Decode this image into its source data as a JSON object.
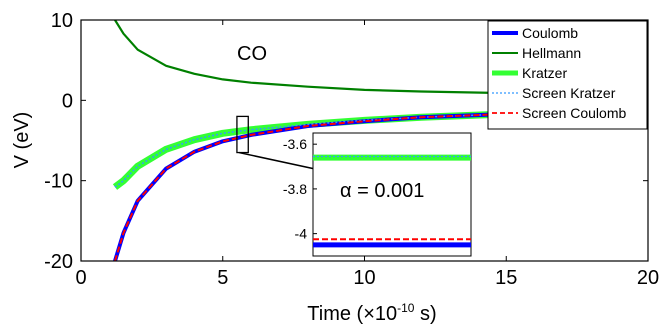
{
  "chart_data": {
    "type": "line",
    "xlabel_main": "Time (×10",
    "xlabel_exp": "-10",
    "xlabel_unit": " s)",
    "ylabel": "V (eV)",
    "xlim": [
      0,
      20
    ],
    "ylim": [
      -20,
      10
    ],
    "xticks": [
      "0",
      "5",
      "10",
      "15",
      "20"
    ],
    "yticks": [
      "10",
      "0",
      "-10",
      "-20"
    ],
    "annotation": "CO",
    "series": [
      {
        "name": "Coulomb",
        "color": "#0000ff",
        "x": [
          1.2,
          1.5,
          2,
          3,
          4,
          5,
          6,
          8,
          10,
          12,
          15,
          18,
          20
        ],
        "y": [
          -20,
          -16.5,
          -12.5,
          -8.5,
          -6.4,
          -5.1,
          -4.3,
          -3.2,
          -2.6,
          -2.1,
          -1.7,
          -1.4,
          -1.3
        ]
      },
      {
        "name": "Hellmann",
        "color": "#008000",
        "x": [
          1.2,
          1.5,
          2,
          3,
          4,
          5,
          6,
          8,
          10,
          12,
          15,
          18,
          20
        ],
        "y": [
          10,
          8.3,
          6.3,
          4.3,
          3.3,
          2.6,
          2.2,
          1.7,
          1.3,
          1.1,
          0.9,
          0.75,
          0.65
        ]
      },
      {
        "name": "Kratzer",
        "color": "#33ff33",
        "x": [
          1.2,
          1.5,
          2,
          3,
          4,
          5,
          6,
          8,
          10,
          12,
          15,
          18,
          20
        ],
        "y": [
          -10.8,
          -10.0,
          -8.2,
          -6.1,
          -4.9,
          -4.1,
          -3.65,
          -3.0,
          -2.5,
          -2.1,
          -1.7,
          -1.45,
          -1.3
        ]
      },
      {
        "name": "Screen Kratzer",
        "color": "#3399ff",
        "x": [
          1.2,
          1.5,
          2,
          3,
          4,
          5,
          6,
          8,
          10,
          12,
          15,
          18,
          20
        ],
        "y": [
          -10.8,
          -10.0,
          -8.2,
          -6.1,
          -4.9,
          -4.1,
          -3.65,
          -3.0,
          -2.5,
          -2.1,
          -1.7,
          -1.45,
          -1.3
        ]
      },
      {
        "name": "Screen Coulomb",
        "color": "#ff0000",
        "x": [
          1.2,
          1.5,
          2,
          3,
          4,
          5,
          6,
          8,
          10,
          12,
          15,
          18,
          20
        ],
        "y": [
          -20,
          -16.5,
          -12.5,
          -8.5,
          -6.4,
          -5.1,
          -4.3,
          -3.2,
          -2.6,
          -2.1,
          -1.7,
          -1.4,
          -1.3
        ]
      }
    ],
    "inset": {
      "yticks": [
        "-3.6",
        "-3.8",
        "-4"
      ],
      "ylim": [
        -4.1,
        -3.55
      ],
      "annotation": "α = 0.001",
      "levels": [
        {
          "series": "Kratzer",
          "y": -3.66
        },
        {
          "series": "Screen Kratzer",
          "y": -3.655
        },
        {
          "series": "Screen Coulomb",
          "y": -4.025
        },
        {
          "series": "Coulomb",
          "y": -4.05
        }
      ]
    },
    "zoom_box": {
      "x": [
        5.5,
        5.9
      ],
      "y": [
        -6.5,
        -2.0
      ]
    },
    "legend_position": "top-right",
    "grid": false
  }
}
